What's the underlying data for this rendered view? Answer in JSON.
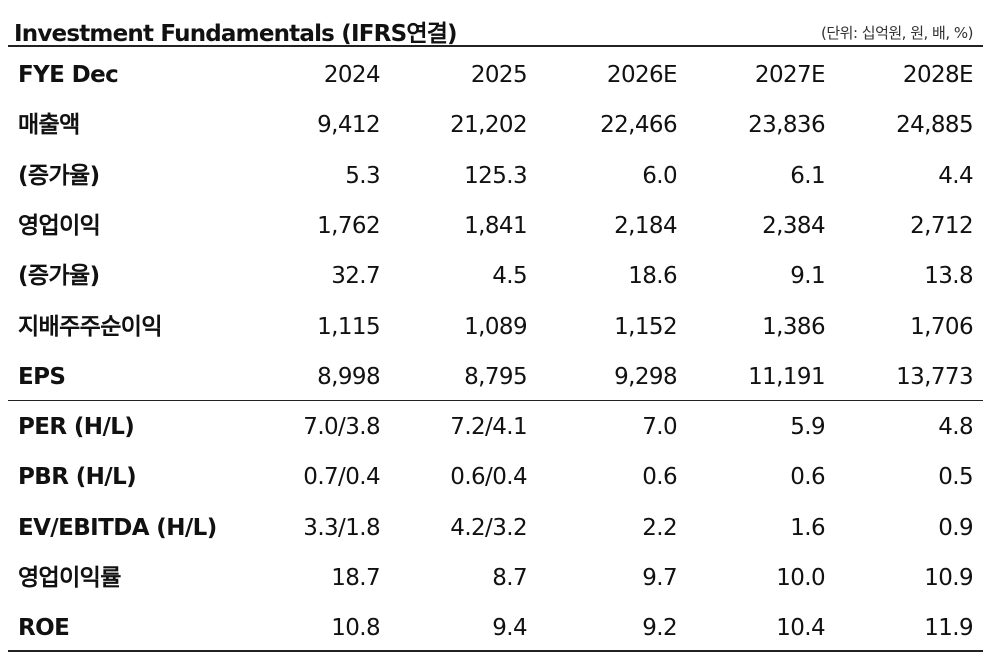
{
  "header": {
    "title": "Investment Fundamentals (IFRS연결)",
    "unit": "(단위: 십억원, 원, 배, %)"
  },
  "table": {
    "columns": [
      "FYE Dec",
      "2024",
      "2025",
      "2026E",
      "2027E",
      "2028E"
    ],
    "sections": [
      [
        [
          "매출액",
          "9,412",
          "21,202",
          "22,466",
          "23,836",
          "24,885"
        ],
        [
          "(증가율)",
          "5.3",
          "125.3",
          "6.0",
          "6.1",
          "4.4"
        ],
        [
          "영업이익",
          "1,762",
          "1,841",
          "2,184",
          "2,384",
          "2,712"
        ],
        [
          "(증가율)",
          "32.7",
          "4.5",
          "18.6",
          "9.1",
          "13.8"
        ],
        [
          "지배주주순이익",
          "1,115",
          "1,089",
          "1,152",
          "1,386",
          "1,706"
        ],
        [
          "EPS",
          "8,998",
          "8,795",
          "9,298",
          "11,191",
          "13,773"
        ]
      ],
      [
        [
          "PER (H/L)",
          "7.0/3.8",
          "7.2/4.1",
          "7.0",
          "5.9",
          "4.8"
        ],
        [
          "PBR (H/L)",
          "0.7/0.4",
          "0.6/0.4",
          "0.6",
          "0.6",
          "0.5"
        ],
        [
          "EV/EBITDA (H/L)",
          "3.3/1.8",
          "4.2/3.2",
          "2.2",
          "1.6",
          "0.9"
        ],
        [
          "영업이익률",
          "18.7",
          "8.7",
          "9.7",
          "10.0",
          "10.9"
        ],
        [
          "ROE",
          "10.8",
          "9.4",
          "9.2",
          "10.4",
          "11.9"
        ]
      ]
    ]
  }
}
